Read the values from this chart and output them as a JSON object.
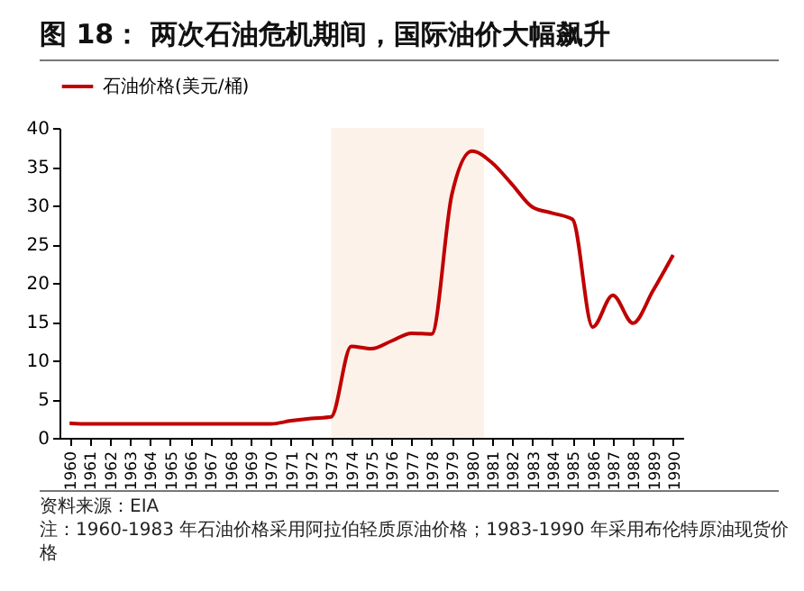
{
  "chart_data": {
    "type": "line",
    "title": "图 18： 两次石油危机期间，国际油价大幅飙升",
    "x": [
      1960,
      1961,
      1962,
      1963,
      1964,
      1965,
      1966,
      1967,
      1968,
      1969,
      1970,
      1971,
      1972,
      1973,
      1974,
      1975,
      1976,
      1977,
      1978,
      1979,
      1980,
      1981,
      1982,
      1983,
      1984,
      1985,
      1986,
      1987,
      1988,
      1989,
      1990
    ],
    "series": [
      {
        "name": "石油价格(美元/桶)",
        "color": "#c00000",
        "values": [
          1.9,
          1.8,
          1.8,
          1.8,
          1.8,
          1.8,
          1.8,
          1.8,
          1.8,
          1.8,
          1.8,
          2.2,
          2.5,
          2.7,
          11.8,
          11.5,
          12.5,
          13.5,
          13.4,
          31.4,
          37,
          35.5,
          32.7,
          29.8,
          29,
          28.2,
          14.3,
          18.4,
          14.8,
          19,
          23.6
        ]
      }
    ],
    "xlim": [
      1959.5,
      1990.5
    ],
    "xticks": [
      1960,
      1961,
      1962,
      1963,
      1964,
      1965,
      1966,
      1967,
      1968,
      1969,
      1970,
      1971,
      1972,
      1973,
      1974,
      1975,
      1976,
      1977,
      1978,
      1979,
      1980,
      1981,
      1982,
      1983,
      1984,
      1985,
      1986,
      1987,
      1988,
      1989,
      1990
    ],
    "ylim": [
      0,
      40
    ],
    "yticks": [
      0,
      5,
      10,
      15,
      20,
      25,
      30,
      35,
      40
    ],
    "bands": [
      {
        "axis": "x",
        "from": 1973,
        "to": 1980.6,
        "color": "#fbf0e6"
      }
    ],
    "legend": "top",
    "grid": false,
    "annotations": [
      "资料来源：EIA",
      "注：1960-1983 年石油价格采用阿拉伯轻质原油价格；1983-1990 年采用布伦特原油现货价格"
    ]
  }
}
